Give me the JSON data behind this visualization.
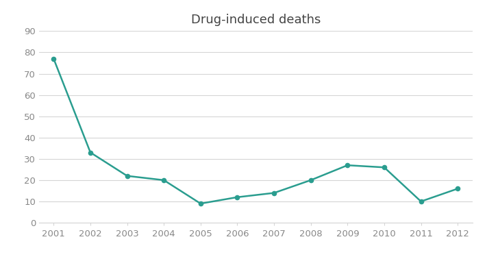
{
  "title": "Drug-induced deaths",
  "years": [
    2001,
    2002,
    2003,
    2004,
    2005,
    2006,
    2007,
    2008,
    2009,
    2010,
    2011,
    2012
  ],
  "values": [
    77,
    33,
    22,
    20,
    9,
    12,
    14,
    20,
    27,
    26,
    10,
    16
  ],
  "line_color": "#2a9d8f",
  "background_color": "#ffffff",
  "grid_color": "#d5d5d5",
  "ylim": [
    0,
    90
  ],
  "yticks": [
    0,
    10,
    20,
    30,
    40,
    50,
    60,
    70,
    80,
    90
  ],
  "title_fontsize": 13,
  "tick_fontsize": 9.5,
  "line_width": 1.8,
  "marker": "o",
  "marker_size": 4.5
}
